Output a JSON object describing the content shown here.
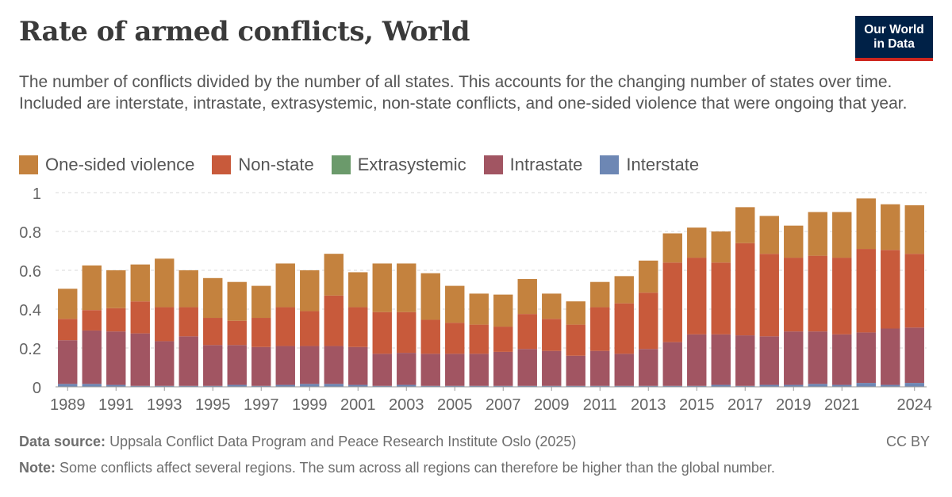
{
  "header": {
    "title": "Rate of armed conflicts, World",
    "subtitle": "The number of conflicts divided by the number of all states. This accounts for the changing number of states over time. Included are interstate, intrastate, extrasystemic, non-state conflicts, and one-sided violence that were ongoing that year.",
    "logo_line1": "Our World",
    "logo_line2": "in Data"
  },
  "colors": {
    "logo_bg": "#002147",
    "logo_accent": "#ce261e"
  },
  "footer": {
    "source_label": "Data source:",
    "source_text": "Uppsala Conflict Data Program and Peace Research Institute Oslo (2025)",
    "license": "CC BY",
    "note_label": "Note:",
    "note_text": "Some conflicts affect several regions. The sum across all regions can therefore be higher than the global number."
  },
  "chart_data": {
    "type": "bar",
    "stacked": true,
    "grid": true,
    "legend_position": "top-left",
    "ylim": [
      0,
      1
    ],
    "y_ticks": [
      "0",
      "0.2",
      "0.4",
      "0.6",
      "0.8",
      "1"
    ],
    "y_tick_values": [
      0,
      0.2,
      0.4,
      0.6,
      0.8,
      1
    ],
    "x_tick_labels": [
      "1989",
      "1991",
      "1993",
      "1995",
      "1997",
      "1999",
      "2001",
      "2003",
      "2005",
      "2007",
      "2009",
      "2011",
      "2013",
      "2015",
      "2017",
      "2019",
      "2021",
      "2024"
    ],
    "categories": [
      1989,
      1990,
      1991,
      1992,
      1993,
      1994,
      1995,
      1996,
      1997,
      1998,
      1999,
      2000,
      2001,
      2002,
      2003,
      2004,
      2005,
      2006,
      2007,
      2008,
      2009,
      2010,
      2011,
      2012,
      2013,
      2014,
      2015,
      2016,
      2017,
      2018,
      2019,
      2020,
      2021,
      2022,
      2023,
      2024
    ],
    "legend": [
      "One-sided violence",
      "Non-state",
      "Extrasystemic",
      "Intrastate",
      "Interstate"
    ],
    "series": [
      {
        "name": "Interstate",
        "color": "#6d87b4",
        "values": [
          0.015,
          0.015,
          0.01,
          0.005,
          0.005,
          0.005,
          0.005,
          0.01,
          0.005,
          0.01,
          0.015,
          0.015,
          0.01,
          0.005,
          0.01,
          0.005,
          0.005,
          0.005,
          0.005,
          0.005,
          0.005,
          0.005,
          0.005,
          0.005,
          0.005,
          0.005,
          0.005,
          0.01,
          0.005,
          0.01,
          0.01,
          0.015,
          0.01,
          0.02,
          0.01,
          0.02
        ]
      },
      {
        "name": "Extrasystemic",
        "color": "#6b9a6b",
        "values": [
          0,
          0,
          0,
          0,
          0,
          0,
          0,
          0,
          0,
          0,
          0,
          0,
          0,
          0,
          0,
          0,
          0,
          0,
          0,
          0,
          0,
          0,
          0,
          0,
          0,
          0,
          0,
          0,
          0,
          0,
          0,
          0,
          0,
          0,
          0,
          0
        ]
      },
      {
        "name": "Intrastate",
        "color": "#a15562",
        "values": [
          0.225,
          0.275,
          0.275,
          0.27,
          0.23,
          0.255,
          0.21,
          0.205,
          0.2,
          0.2,
          0.195,
          0.195,
          0.195,
          0.165,
          0.165,
          0.165,
          0.165,
          0.165,
          0.175,
          0.19,
          0.18,
          0.155,
          0.18,
          0.165,
          0.19,
          0.225,
          0.265,
          0.26,
          0.26,
          0.25,
          0.275,
          0.27,
          0.26,
          0.26,
          0.29,
          0.285
        ]
      },
      {
        "name": "Non-state",
        "color": "#c85a3b",
        "values": [
          0.11,
          0.105,
          0.12,
          0.165,
          0.175,
          0.15,
          0.14,
          0.125,
          0.15,
          0.2,
          0.18,
          0.26,
          0.205,
          0.215,
          0.21,
          0.175,
          0.16,
          0.15,
          0.13,
          0.18,
          0.165,
          0.16,
          0.225,
          0.26,
          0.29,
          0.41,
          0.395,
          0.37,
          0.475,
          0.425,
          0.38,
          0.39,
          0.395,
          0.43,
          0.405,
          0.38
        ]
      },
      {
        "name": "One-sided violence",
        "color": "#c4823e",
        "values": [
          0.155,
          0.23,
          0.195,
          0.19,
          0.25,
          0.19,
          0.205,
          0.2,
          0.165,
          0.225,
          0.21,
          0.215,
          0.18,
          0.25,
          0.25,
          0.24,
          0.19,
          0.16,
          0.165,
          0.18,
          0.13,
          0.12,
          0.13,
          0.14,
          0.165,
          0.15,
          0.155,
          0.16,
          0.185,
          0.195,
          0.165,
          0.225,
          0.235,
          0.26,
          0.235,
          0.25
        ]
      }
    ]
  }
}
